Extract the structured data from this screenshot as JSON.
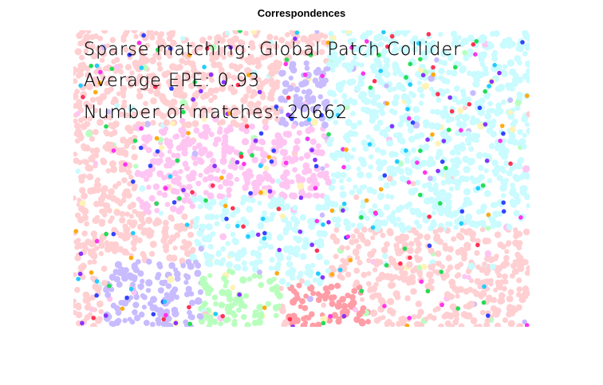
{
  "figure": {
    "title": "Correspondences"
  },
  "overlay": {
    "method_line": "Sparse matching: Global Patch Collider",
    "epe_line": "Average EPE: 0.93",
    "matches_line": "Number of matches: 20662"
  },
  "chart_data": {
    "type": "scatter",
    "title": "Correspondences",
    "xlabel": "",
    "ylabel": "",
    "grid": false,
    "legend": "none",
    "annotations": [
      "Sparse matching: Global Patch Collider",
      "Average EPE: 0.93",
      "Number of matches: 20662"
    ],
    "colors": {
      "pink": "#ffcfd2",
      "light_pink": "#ffc5f2",
      "cyan": "#c9fbff",
      "lavender": "#c8bbff",
      "mint": "#b8ffbe",
      "yellow": "#fff3b8",
      "salmon": "#ff9da6"
    }
  }
}
